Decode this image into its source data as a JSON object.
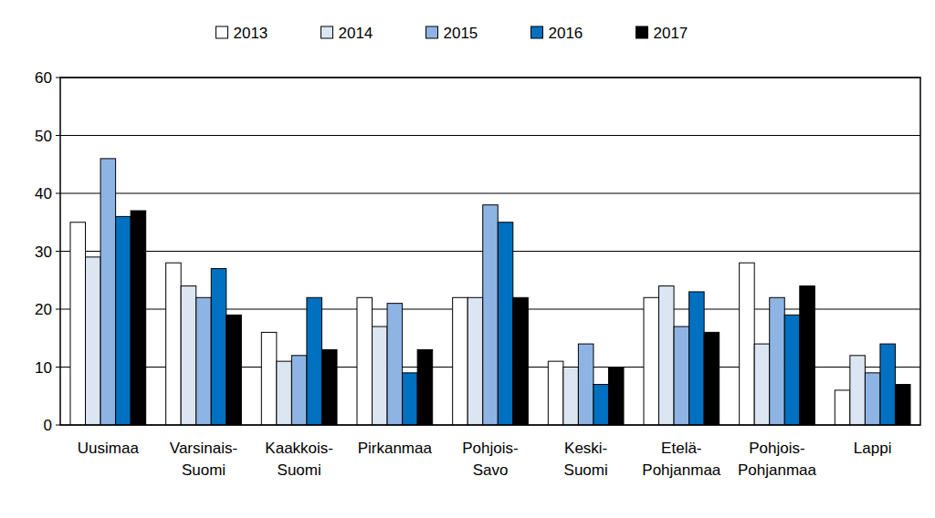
{
  "chart_data": {
    "type": "bar",
    "categories": [
      "Uusimaa",
      "Varsinais-Suomi",
      "Kaakkois-Suomi",
      "Pirkanmaa",
      "Pohjois-Savo",
      "Keski-Suomi",
      "Etelä-Pohjanmaa",
      "Pohjois-Pohjanmaa",
      "Lappi"
    ],
    "series": [
      {
        "name": "2013",
        "color": "#ffffff",
        "values": [
          35,
          28,
          16,
          22,
          22,
          11,
          22,
          28,
          6
        ]
      },
      {
        "name": "2014",
        "color": "#dce6f2",
        "values": [
          29,
          24,
          11,
          17,
          22,
          10,
          24,
          14,
          12
        ]
      },
      {
        "name": "2015",
        "color": "#8eb4e3",
        "values": [
          46,
          22,
          12,
          21,
          38,
          14,
          17,
          22,
          9
        ]
      },
      {
        "name": "2016",
        "color": "#0070c0",
        "values": [
          36,
          27,
          22,
          9,
          35,
          7,
          23,
          19,
          14
        ]
      },
      {
        "name": "2017",
        "color": "#000000",
        "values": [
          37,
          19,
          13,
          13,
          22,
          10,
          16,
          24,
          7
        ]
      }
    ],
    "ylim": [
      0,
      60
    ],
    "yticks": [
      0,
      10,
      20,
      30,
      40,
      50,
      60
    ],
    "grid": true,
    "legend": "top"
  }
}
